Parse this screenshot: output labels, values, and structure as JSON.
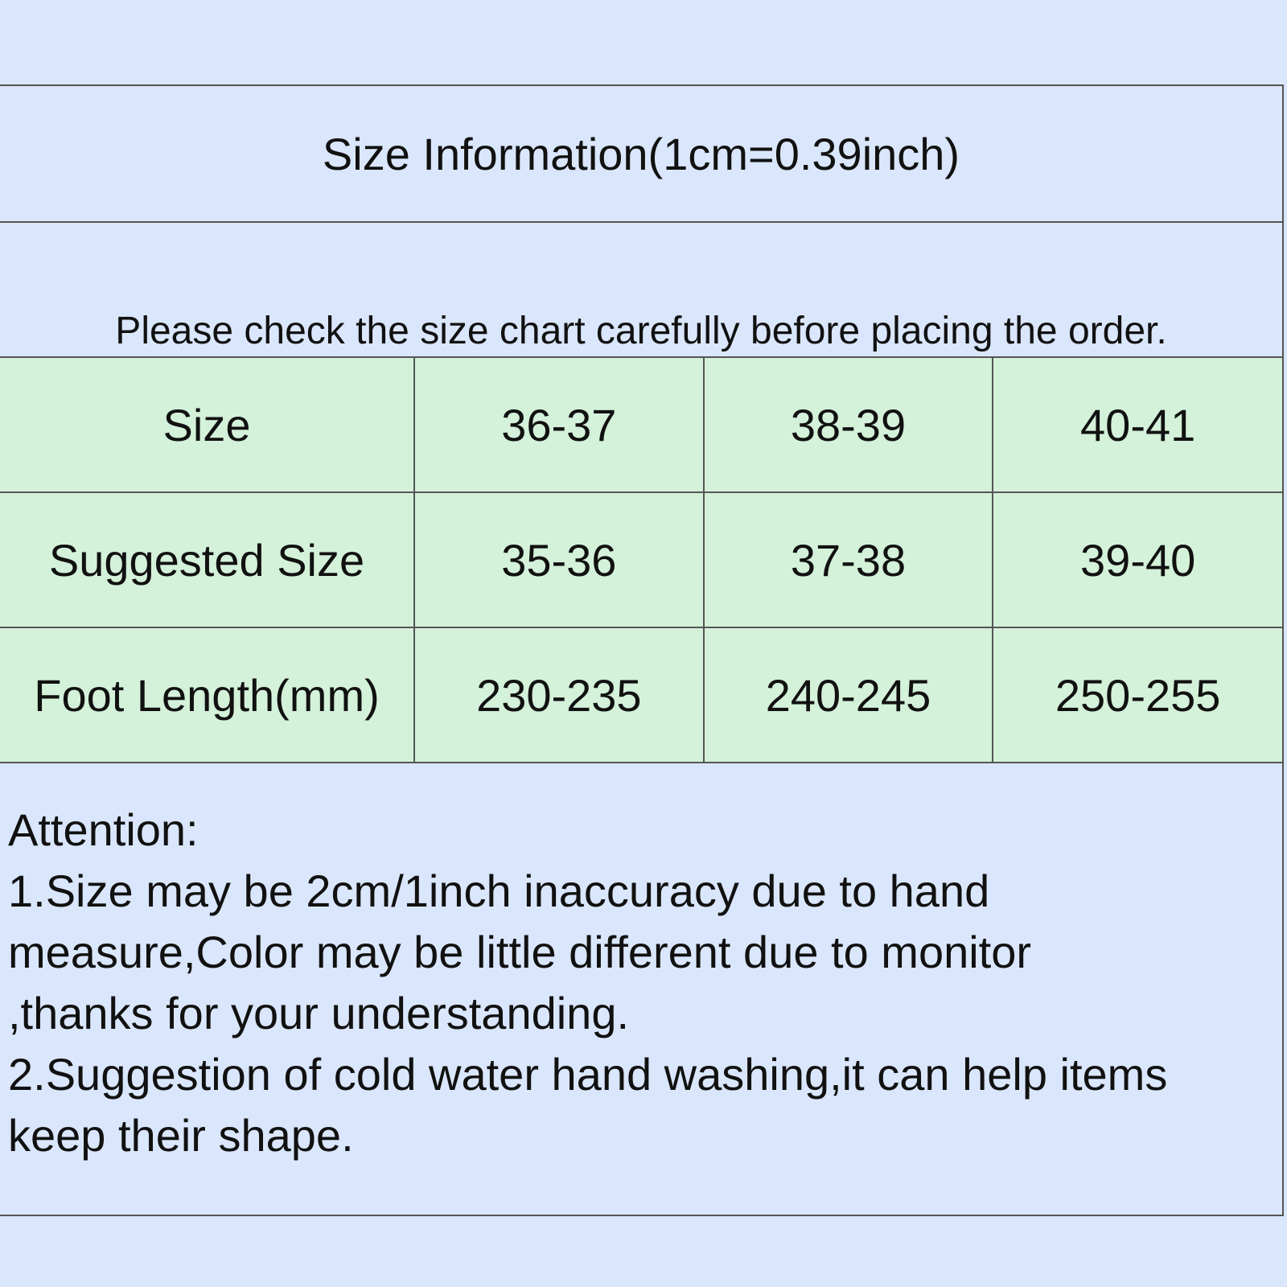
{
  "title": "Size Information(1cm=0.39inch)",
  "note": "Please check the size chart carefully before placing the order.",
  "table": {
    "rows": [
      [
        "Size",
        "36-37",
        "38-39",
        "40-41"
      ],
      [
        "Suggested Size",
        "35-36",
        "37-38",
        "39-40"
      ],
      [
        "Foot Length(mm)",
        "230-235",
        "240-245",
        "250-255"
      ]
    ]
  },
  "attention": {
    "heading": "Attention:",
    "lines": [
      "1.Size may be 2cm/1inch inaccuracy due to hand",
      "measure,Color may be little different due to monitor",
      ",thanks for your understanding.",
      "2.Suggestion of cold water hand washing,it can help items",
      "keep their shape."
    ]
  },
  "colors": {
    "background": "#dae6fb",
    "table": "#d4f1d9",
    "border": "#555555"
  }
}
